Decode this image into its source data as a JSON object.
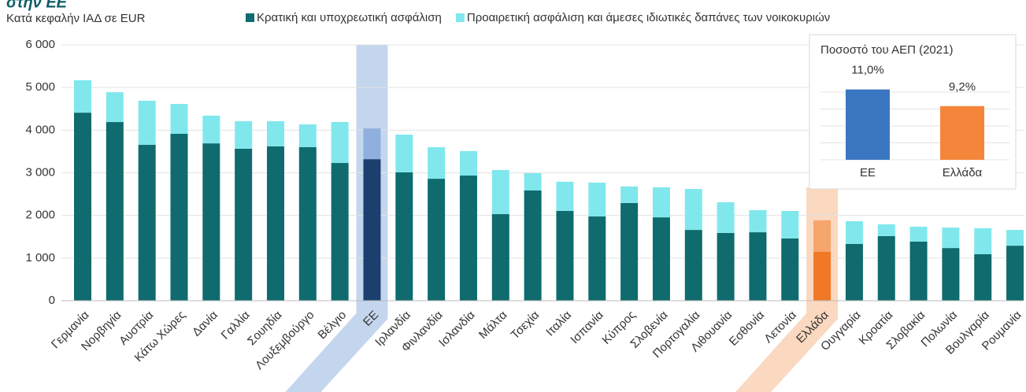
{
  "chart_data": [
    {
      "type": "stacked-bar",
      "title": "στην ΕΕ",
      "subtitle": "Κατά κεφαλήν ΙΑΔ σε EUR",
      "categories": [
        "Γερμανία",
        "Νορβηγία",
        "Αυστρία",
        "Κάτω Χώρες",
        "Δανία",
        "Γαλλία",
        "Σουηδία",
        "Λουξεμβούργο",
        "Βέλγιο",
        "ΕΕ",
        "Ιρλανδία",
        "Φινλανδία",
        "Ισλανδία",
        "Μάλτα",
        "Τσεχία",
        "Ιταλία",
        "Ισπανία",
        "Κύπρος",
        "Σλοβενία",
        "Πορτογαλία",
        "Λιθουανία",
        "Εσθονία",
        "Λετονία",
        "Ελλάδα",
        "Ουγγαρία",
        "Κροατία",
        "Σλοβακία",
        "Πολωνία",
        "Βουλγαρία",
        "Ρουμανία"
      ],
      "series": [
        {
          "name": "Κρατική και υποχρεωτική ασφάλιση",
          "color": "#0f6b6d",
          "values": [
            4410,
            4190,
            3655,
            3915,
            3690,
            3565,
            3620,
            3600,
            3230,
            3320,
            3010,
            2860,
            2935,
            2030,
            2585,
            2105,
            1975,
            2290,
            1955,
            1660,
            1590,
            1605,
            1460,
            1145,
            1330,
            1515,
            1385,
            1235,
            1090,
            1290
          ]
        },
        {
          "name": "Προαιρετική ασφάλιση και άμεσες ιδιωτικές δαπάνες των νοικοκυριών",
          "color": "#80e8ec",
          "values": [
            760,
            700,
            1035,
            700,
            650,
            645,
            590,
            535,
            960,
            720,
            885,
            740,
            575,
            1035,
            405,
            685,
            795,
            390,
            705,
            960,
            720,
            520,
            645,
            740,
            535,
            275,
            350,
            480,
            610,
            370
          ]
        }
      ],
      "highlights": [
        {
          "index": 9,
          "colors": [
            "#1b3f6f",
            "#8fb0de"
          ],
          "band": "#c4d6ee"
        },
        {
          "index": 23,
          "colors": [
            "#f07826",
            "#f6a56c"
          ],
          "band": "#fbd8c0"
        }
      ],
      "ylim": [
        0,
        6000
      ],
      "yticks": [
        {
          "value": 0,
          "label": "0"
        },
        {
          "value": 1000,
          "label": "1 000"
        },
        {
          "value": 2000,
          "label": "2 000"
        },
        {
          "value": 3000,
          "label": "3 000"
        },
        {
          "value": 4000,
          "label": "4 000"
        },
        {
          "value": 5000,
          "label": "5 000"
        },
        {
          "value": 6000,
          "label": "6 000"
        }
      ],
      "grid": true
    },
    {
      "type": "bar",
      "title": "Ποσοστό του ΑΕΠ (2021)",
      "categories": [
        "ΕΕ",
        "Ελλάδα"
      ],
      "values": [
        11.0,
        9.2
      ],
      "value_labels": [
        "11,0%",
        "9,2%"
      ],
      "colors": [
        "#3b77c0",
        "#f5853a"
      ],
      "ylim": [
        3.4,
        12.5
      ],
      "grid": true
    }
  ]
}
